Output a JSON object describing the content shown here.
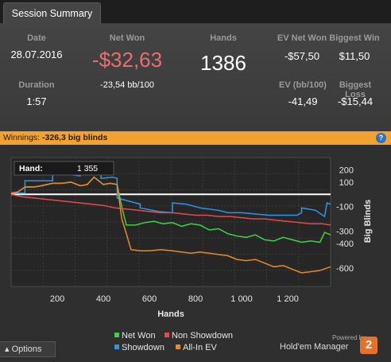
{
  "tab": {
    "label": "Session Summary"
  },
  "summary": {
    "date_label": "Date",
    "date": "28.07.2016",
    "netwon_label": "Net Won",
    "netwon": "-$32,63",
    "bb100": "-23,54 bb/100",
    "hands_label": "Hands",
    "hands": "1386",
    "ev_label": "EV Net Won",
    "ev": "-$57,50",
    "bigwin_label": "Biggest Win",
    "bigwin": "$11,50",
    "duration_label": "Duration",
    "duration": "1:57",
    "evbb_label": "EV (bb/100)",
    "evbb": "-41,49",
    "bigloss_label": "Biggest Loss",
    "bigloss": "-$15,44"
  },
  "banner": {
    "prefix": "Winnings:",
    "value": "-326,3 big blinds",
    "help": "?"
  },
  "chart_data": {
    "type": "line",
    "xlabel": "Hands",
    "ylabel": "Big Blinds",
    "xlim": [
      0,
      1386
    ],
    "ylim": [
      -750,
      300
    ],
    "x_ticks": [
      200,
      400,
      600,
      800,
      1000,
      1200
    ],
    "x_tick_labels": [
      "200",
      "400",
      "600",
      "800",
      "1 000",
      "1 200"
    ],
    "y_ticks": [
      200,
      100,
      -100,
      -300,
      -400,
      -600
    ],
    "y_tick_labels": [
      "200",
      "100",
      "-100",
      "-300",
      "-400",
      "-600"
    ],
    "tooltip": {
      "label": "Hand:",
      "value": "1 355"
    },
    "series": [
      {
        "name": "Showdown",
        "color": "#2e96e8",
        "x": [
          0,
          30,
          60,
          60,
          180,
          180,
          260,
          300,
          300,
          330,
          330,
          390,
          390,
          440,
          460,
          460,
          520,
          560,
          560,
          640,
          700,
          700,
          760,
          820,
          900,
          940,
          1000,
          1060,
          1120,
          1180,
          1240,
          1260,
          1260,
          1320,
          1360,
          1370,
          1386
        ],
        "y": [
          10,
          10,
          10,
          110,
          110,
          160,
          160,
          150,
          170,
          170,
          220,
          220,
          130,
          140,
          130,
          -30,
          -60,
          -80,
          -110,
          -140,
          -150,
          -70,
          -80,
          -110,
          -130,
          -150,
          -150,
          -160,
          -170,
          -170,
          -170,
          -150,
          -110,
          -130,
          -180,
          -70,
          -80
        ]
      },
      {
        "name": "Net Won",
        "color": "#3ed244",
        "x": [
          0,
          30,
          60,
          100,
          130,
          180,
          220,
          260,
          300,
          330,
          360,
          400,
          430,
          460,
          480,
          500,
          540,
          580,
          620,
          660,
          700,
          740,
          780,
          820,
          860,
          900,
          940,
          980,
          1020,
          1060,
          1100,
          1140,
          1180,
          1220,
          1260,
          1300,
          1340,
          1360,
          1386
        ],
        "y": [
          10,
          20,
          60,
          60,
          70,
          90,
          90,
          100,
          70,
          80,
          140,
          80,
          90,
          80,
          -100,
          -250,
          -250,
          -230,
          -220,
          -240,
          -230,
          -260,
          -240,
          -250,
          -290,
          -280,
          -320,
          -340,
          -350,
          -330,
          -370,
          -380,
          -350,
          -370,
          -390,
          -380,
          -390,
          -310,
          -330
        ]
      },
      {
        "name": "Non Showdown",
        "color": "#e54b4b",
        "x": [
          0,
          50,
          100,
          150,
          200,
          250,
          300,
          350,
          400,
          450,
          500,
          550,
          600,
          650,
          700,
          750,
          800,
          850,
          900,
          950,
          1000,
          1050,
          1100,
          1150,
          1200,
          1250,
          1300,
          1350,
          1386
        ],
        "y": [
          0,
          -20,
          -30,
          -40,
          -50,
          -60,
          -70,
          -80,
          -90,
          -110,
          -120,
          -130,
          -140,
          -150,
          -150,
          -160,
          -170,
          -170,
          -180,
          -180,
          -190,
          -200,
          -200,
          -210,
          -220,
          -230,
          -240,
          -240,
          -250
        ]
      },
      {
        "name": "All-In EV",
        "color": "#e8892b",
        "x": [
          0,
          30,
          60,
          100,
          130,
          180,
          220,
          260,
          300,
          330,
          360,
          400,
          430,
          460,
          480,
          500,
          520,
          560,
          600,
          650,
          700,
          740,
          780,
          820,
          860,
          900,
          940,
          980,
          1020,
          1060,
          1100,
          1140,
          1180,
          1220,
          1260,
          1300,
          1340,
          1386
        ],
        "y": [
          10,
          20,
          60,
          60,
          70,
          90,
          90,
          100,
          70,
          80,
          140,
          80,
          90,
          80,
          -200,
          -320,
          -450,
          -460,
          -460,
          -450,
          -460,
          -470,
          -480,
          -470,
          -480,
          -490,
          -500,
          -530,
          -540,
          -530,
          -560,
          -590,
          -580,
          -610,
          -640,
          -630,
          -620,
          -590
        ]
      }
    ]
  },
  "legend": [
    {
      "name": "Net Won",
      "color": "#3ed244"
    },
    {
      "name": "Non Showdown",
      "color": "#e54b4b"
    },
    {
      "name": "Showdown",
      "color": "#2e96e8"
    },
    {
      "name": "All-In EV",
      "color": "#e8892b"
    }
  ],
  "footer": {
    "options": "Options",
    "options_icon": "caret-up-icon",
    "powered": "Powered by",
    "brand": "Hold'em Manager",
    "brand_mark": "2"
  }
}
